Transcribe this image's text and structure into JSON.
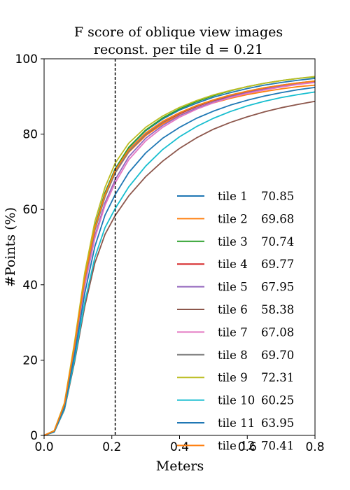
{
  "chart_data": {
    "type": "line",
    "title": [
      "F score of oblique view images",
      "reconst. per tile d = 0.21"
    ],
    "xlabel": "Meters",
    "ylabel": "#Points (%)",
    "xlim": [
      0,
      0.8
    ],
    "ylim": [
      0,
      100
    ],
    "xticks": [
      "0.0",
      "0.2",
      "0.4",
      "0.6",
      "0.8"
    ],
    "yticks": [
      "0",
      "20",
      "40",
      "60",
      "80",
      "100"
    ],
    "threshold": 0.21,
    "grid": false,
    "legend_position": "lower-right",
    "x": [
      0.0,
      0.03,
      0.06,
      0.09,
      0.12,
      0.15,
      0.18,
      0.21,
      0.25,
      0.3,
      0.35,
      0.4,
      0.45,
      0.5,
      0.55,
      0.6,
      0.65,
      0.7,
      0.75,
      0.8
    ],
    "series": [
      {
        "name": "tile 1",
        "score": "70.85",
        "color": "#1f77b4",
        "values": [
          0,
          1.2,
          8.3,
          24.1,
          42.0,
          55.5,
          64.5,
          70.85,
          76.4,
          80.9,
          84.0,
          86.4,
          88.2,
          89.8,
          91.0,
          92.1,
          93.0,
          93.7,
          94.3,
          94.8
        ]
      },
      {
        "name": "tile 2",
        "score": "69.68",
        "color": "#ff7f0e",
        "values": [
          0,
          1.2,
          8.2,
          23.6,
          41.2,
          54.5,
          63.4,
          69.68,
          75.2,
          79.6,
          82.7,
          85.0,
          86.8,
          88.3,
          89.5,
          90.5,
          91.3,
          92.0,
          92.6,
          93.0
        ]
      },
      {
        "name": "tile 3",
        "score": "70.74",
        "color": "#2ca02c",
        "values": [
          0,
          1.2,
          8.3,
          24.1,
          42.0,
          55.4,
          64.4,
          70.74,
          76.5,
          81.1,
          84.3,
          86.7,
          88.6,
          90.2,
          91.5,
          92.6,
          93.5,
          94.2,
          94.8,
          95.2
        ]
      },
      {
        "name": "tile 4",
        "score": "69.77",
        "color": "#d62728",
        "values": [
          0,
          1.2,
          8.2,
          23.7,
          41.4,
          54.6,
          63.5,
          69.77,
          75.4,
          79.9,
          83.1,
          85.4,
          87.3,
          88.9,
          90.1,
          91.2,
          92.1,
          92.9,
          93.5,
          94.0
        ]
      },
      {
        "name": "tile 5",
        "score": "67.95",
        "color": "#9467bd",
        "values": [
          0,
          1.1,
          7.9,
          22.9,
          40.0,
          53.0,
          61.8,
          67.95,
          74.0,
          78.9,
          82.3,
          84.9,
          86.9,
          88.5,
          89.9,
          91.0,
          91.9,
          92.7,
          93.3,
          93.8
        ]
      },
      {
        "name": "tile 6",
        "score": "58.38",
        "color": "#8c564b",
        "values": [
          0,
          0.9,
          6.8,
          19.5,
          34.2,
          45.8,
          53.4,
          58.38,
          63.6,
          68.7,
          72.8,
          76.2,
          79.0,
          81.3,
          83.1,
          84.6,
          85.9,
          87.0,
          87.9,
          88.7
        ]
      },
      {
        "name": "tile 7",
        "score": "67.08",
        "color": "#e377c2",
        "values": [
          0,
          1.1,
          7.8,
          22.6,
          39.6,
          52.4,
          61.1,
          67.08,
          73.2,
          78.2,
          81.8,
          84.5,
          86.6,
          88.3,
          89.7,
          90.8,
          91.7,
          92.5,
          93.2,
          93.7
        ]
      },
      {
        "name": "tile 8",
        "score": "69.70",
        "color": "#7f7f7f",
        "values": [
          0,
          1.2,
          8.2,
          23.6,
          41.3,
          54.5,
          63.4,
          69.7,
          75.4,
          80.0,
          83.2,
          85.6,
          87.5,
          89.0,
          90.3,
          91.4,
          92.3,
          93.0,
          93.6,
          94.1
        ]
      },
      {
        "name": "tile 9",
        "score": "72.31",
        "color": "#bcbd22",
        "values": [
          0,
          1.3,
          8.6,
          24.8,
          43.2,
          56.8,
          65.9,
          72.31,
          77.6,
          81.8,
          84.8,
          87.1,
          88.9,
          90.4,
          91.6,
          92.6,
          93.5,
          94.2,
          94.8,
          95.3
        ]
      },
      {
        "name": "tile 10",
        "score": "60.25",
        "color": "#17becf",
        "values": [
          0,
          0.9,
          7.0,
          20.1,
          35.3,
          47.3,
          55.2,
          60.25,
          66.0,
          71.5,
          75.9,
          79.3,
          82.0,
          84.2,
          86.0,
          87.5,
          88.7,
          89.7,
          90.5,
          91.2
        ]
      },
      {
        "name": "tile 11",
        "score": "63.95",
        "color": "#1f77b4",
        "values": [
          0,
          1.0,
          7.4,
          21.5,
          37.7,
          50.2,
          58.5,
          63.95,
          69.8,
          75.0,
          78.9,
          81.8,
          84.2,
          86.1,
          87.7,
          89.0,
          90.1,
          91.0,
          91.8,
          92.4
        ]
      },
      {
        "name": "tile 12",
        "score": "70.41",
        "color": "#ff7f0e",
        "values": [
          0,
          1.2,
          8.3,
          23.9,
          41.7,
          55.1,
          64.0,
          70.41,
          75.9,
          80.3,
          83.4,
          85.7,
          87.6,
          89.1,
          90.4,
          91.4,
          92.3,
          93.0,
          93.6,
          94.1
        ]
      }
    ]
  }
}
